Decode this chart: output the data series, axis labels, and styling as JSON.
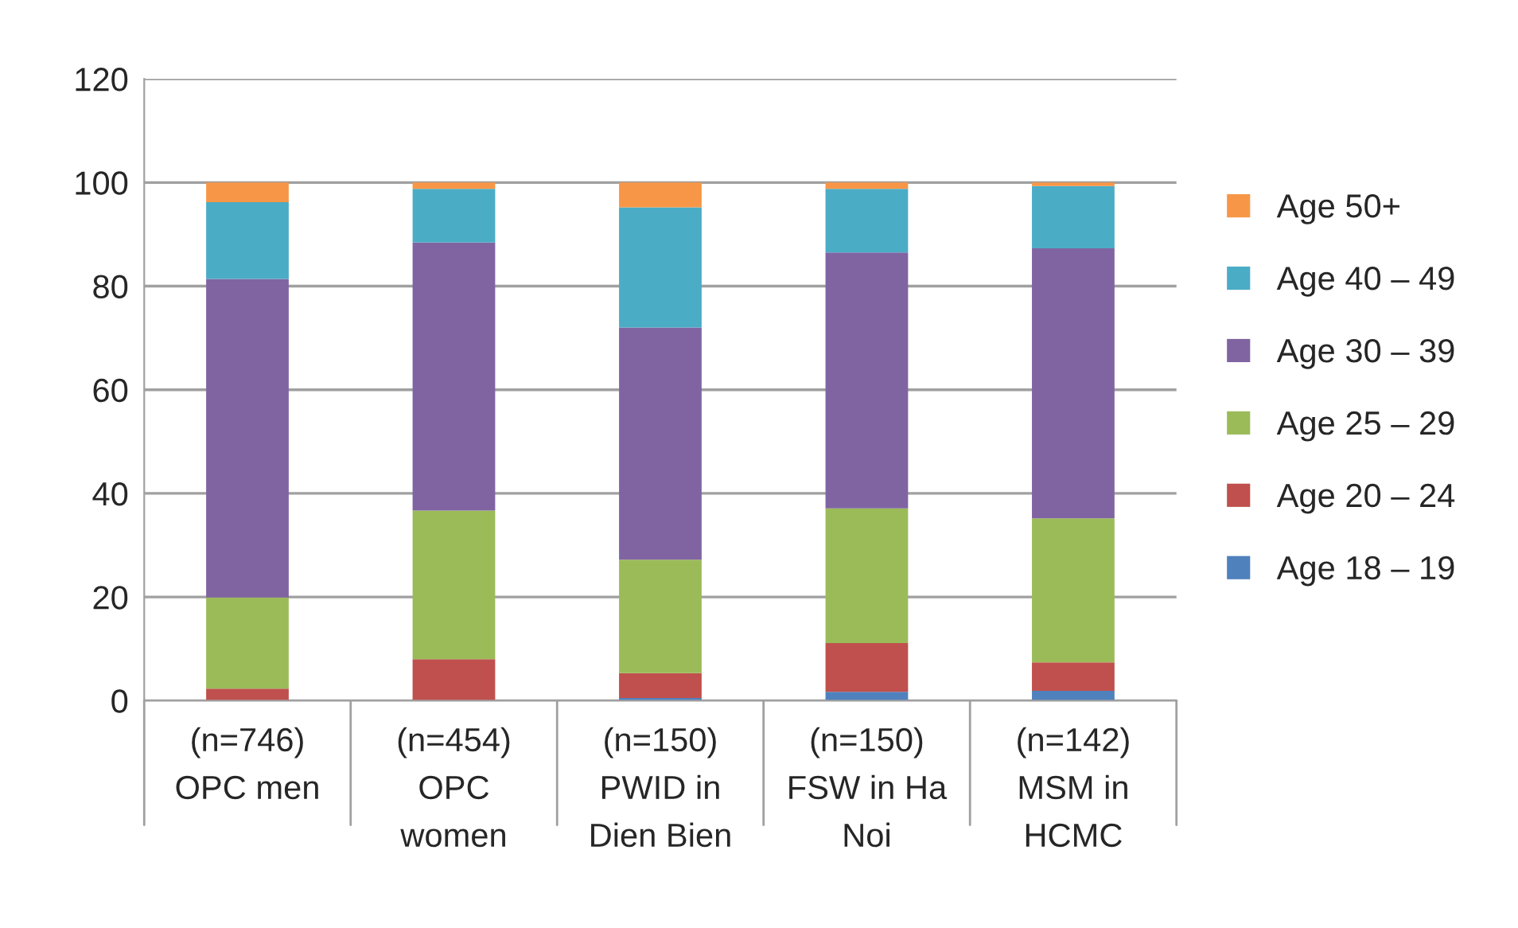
{
  "chart_data": {
    "type": "bar",
    "stacked": true,
    "categories": [
      "(n=746)\nOPC men",
      "(n=454)\nOPC\nwomen",
      "(n=150)\nPWID in\nDien Bien",
      "(n=150)\nFSW in Ha\nNoi",
      "(n=142)\nMSM in\nHCMC"
    ],
    "series": [
      {
        "name": "Age 18 – 19",
        "color": "#4f81bd",
        "values": [
          0,
          0,
          0.5,
          1.7,
          1.9
        ]
      },
      {
        "name": "Age 20 – 24",
        "color": "#c0504d",
        "values": [
          2.3,
          8.0,
          4.8,
          9.4,
          5.5
        ]
      },
      {
        "name": "Age 25 – 29",
        "color": "#9bbb59",
        "values": [
          17.6,
          28.7,
          21.9,
          26.0,
          27.8
        ]
      },
      {
        "name": "Age 30 – 39",
        "color": "#8064a2",
        "values": [
          61.5,
          51.7,
          44.8,
          49.4,
          52.1
        ]
      },
      {
        "name": "Age 40 – 49",
        "color": "#4bacc6",
        "values": [
          14.8,
          10.4,
          23.2,
          12.3,
          12.0
        ]
      },
      {
        "name": "Age 50+",
        "color": "#f79646",
        "values": [
          3.8,
          1.2,
          4.8,
          1.2,
          0.7
        ]
      }
    ],
    "ylim": [
      0,
      120
    ],
    "yticks": [
      0,
      20,
      40,
      60,
      80,
      100,
      120
    ],
    "grid": "y",
    "legend": "right"
  }
}
